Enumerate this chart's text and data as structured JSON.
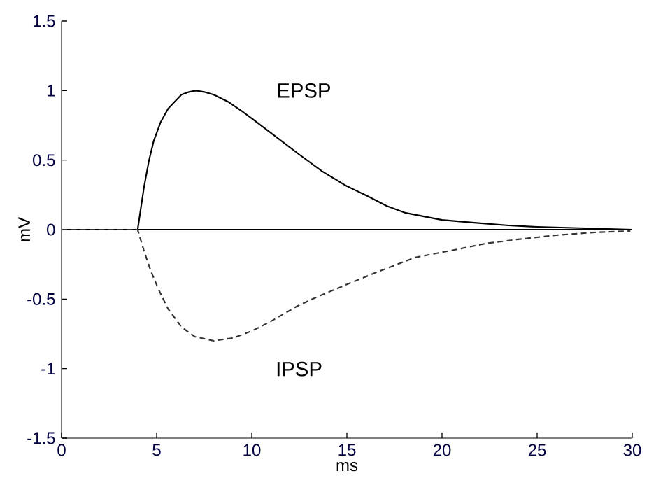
{
  "chart_data": {
    "type": "line",
    "xlabel": "ms",
    "ylabel": "mV",
    "xlim": [
      0,
      30
    ],
    "ylim": [
      -1.5,
      1.5
    ],
    "xticks": [
      0,
      5,
      10,
      15,
      20,
      25,
      30
    ],
    "yticks": [
      -1.5,
      -1,
      -0.5,
      0,
      0.5,
      1,
      1.5
    ],
    "grid": false,
    "legend": false,
    "marker": "none",
    "ref_lines": [
      {
        "axis": "y",
        "value": 0,
        "color": "#000000",
        "line_style": "solid"
      }
    ],
    "series": [
      {
        "name": "EPSP",
        "color": "#000000",
        "line_style": "solid",
        "x": [
          0,
          4,
          4.34,
          4.6,
          4.85,
          5.2,
          5.6,
          6.3,
          6.7,
          7.06,
          7.5,
          8,
          8.75,
          9.5,
          10,
          11.25,
          12.5,
          13.7,
          14.9,
          16.1,
          17.1,
          18.1,
          20,
          21.7,
          23.5,
          25,
          27.5,
          30
        ],
        "values": [
          0,
          0,
          0.31,
          0.5,
          0.64,
          0.77,
          0.87,
          0.97,
          0.99,
          1.0,
          0.99,
          0.97,
          0.92,
          0.85,
          0.8,
          0.67,
          0.54,
          0.42,
          0.32,
          0.24,
          0.17,
          0.12,
          0.07,
          0.05,
          0.03,
          0.02,
          0.01,
          0
        ]
      },
      {
        "name": "IPSP",
        "color": "#333333",
        "line_style": "dashed",
        "x": [
          0,
          4,
          4.35,
          4.7,
          5.1,
          5.6,
          6.3,
          7,
          8.0,
          9,
          10,
          11,
          12.4,
          13.5,
          14.9,
          16.5,
          18.6,
          20.5,
          22.3,
          24,
          26,
          28,
          29.9
        ],
        "values": [
          0,
          0,
          -0.16,
          -0.3,
          -0.43,
          -0.57,
          -0.7,
          -0.77,
          -0.8,
          -0.78,
          -0.73,
          -0.66,
          -0.55,
          -0.48,
          -0.4,
          -0.31,
          -0.2,
          -0.15,
          -0.1,
          -0.07,
          -0.04,
          -0.02,
          -0.01
        ]
      }
    ]
  }
}
